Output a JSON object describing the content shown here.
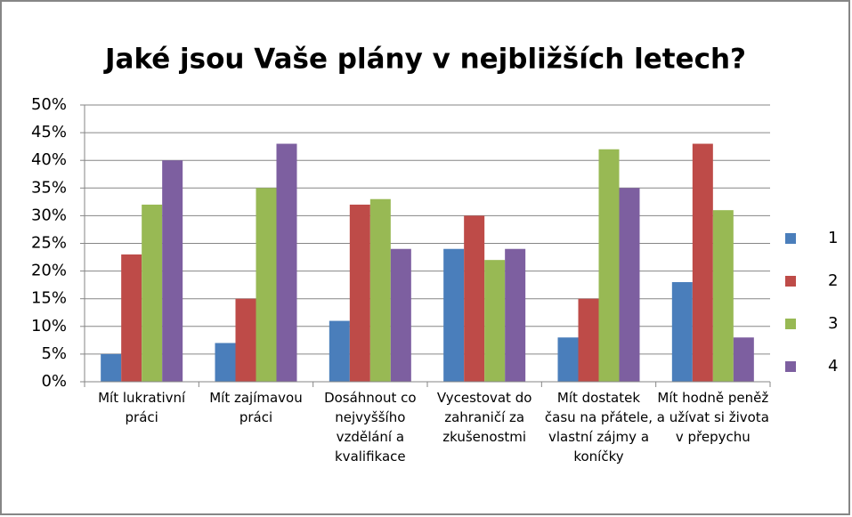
{
  "chart_data": {
    "type": "bar",
    "title": "Jaké jsou Vaše plány v nejbližších letech?",
    "categories": [
      "Mít lukrativní práci",
      "Mít zajímavou práci",
      "Dosáhnout co nejvyššího vzdělání a kvalifikace",
      "Vycestovat do zahraničí za zkušenostmi",
      "Mít dostatek času na přátele, vlastní zájmy a koníčky",
      "Mít hodně peněž a užívat si života v přepychu"
    ],
    "series": [
      {
        "name": "1",
        "color": "#4a7ebb",
        "values": [
          5,
          7,
          11,
          24,
          8,
          18
        ]
      },
      {
        "name": "2",
        "color": "#be4b48",
        "values": [
          23,
          15,
          32,
          30,
          15,
          43
        ]
      },
      {
        "name": "3",
        "color": "#98b954",
        "values": [
          32,
          35,
          33,
          22,
          42,
          31
        ]
      },
      {
        "name": "4",
        "color": "#7d5fa0",
        "values": [
          40,
          43,
          24,
          24,
          35,
          8
        ]
      }
    ],
    "ylim": [
      0,
      50
    ],
    "yticks": [
      {
        "value": 0,
        "label": "0%"
      },
      {
        "value": 5,
        "label": "5%"
      },
      {
        "value": 10,
        "label": "10%"
      },
      {
        "value": 15,
        "label": "15%"
      },
      {
        "value": 20,
        "label": "20%"
      },
      {
        "value": 25,
        "label": "25%"
      },
      {
        "value": 30,
        "label": "30%"
      },
      {
        "value": 35,
        "label": "35%"
      },
      {
        "value": 40,
        "label": "40%"
      },
      {
        "value": 45,
        "label": "45%"
      },
      {
        "value": 50,
        "label": "50%"
      }
    ],
    "grid": true,
    "legend": "right"
  }
}
